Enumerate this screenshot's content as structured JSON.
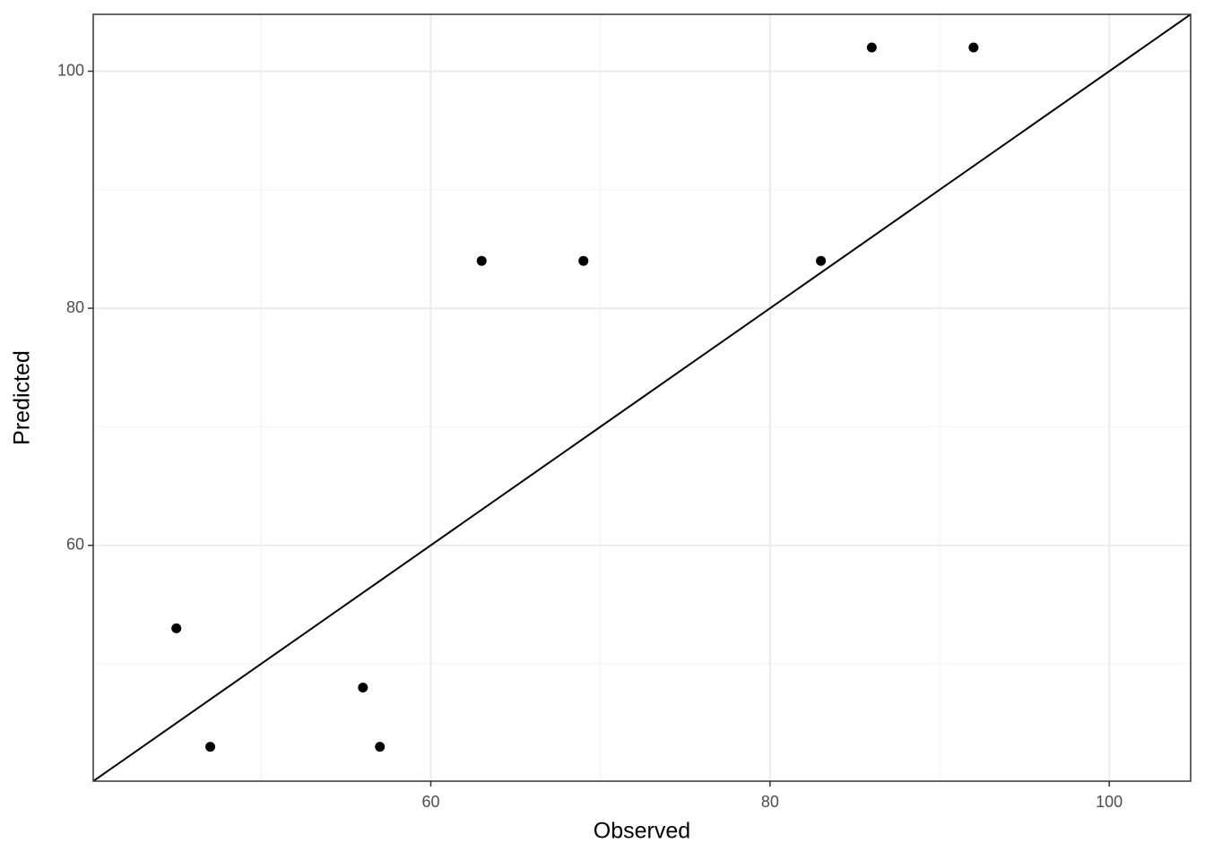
{
  "chart_data": {
    "type": "scatter",
    "x_label": "Observed",
    "y_label": "Predicted",
    "series": [
      {
        "color": "#000000",
        "x": [
          45,
          47,
          56,
          57,
          63,
          69,
          83,
          86,
          92
        ],
        "values": [
          53,
          43,
          48,
          43,
          84,
          84,
          84,
          102,
          102
        ]
      }
    ],
    "abline": {
      "slope": 1,
      "intercept": 0,
      "color": "#000000"
    },
    "xlim": [
      40.1,
      104.8
    ],
    "ylim": [
      40.1,
      104.8
    ],
    "xticks": [
      60,
      80,
      100
    ],
    "yticks": [
      60,
      80,
      100
    ],
    "x_minor_grid": [
      50,
      70,
      90
    ],
    "y_minor_grid": [
      50,
      70,
      90
    ],
    "grid": true
  }
}
